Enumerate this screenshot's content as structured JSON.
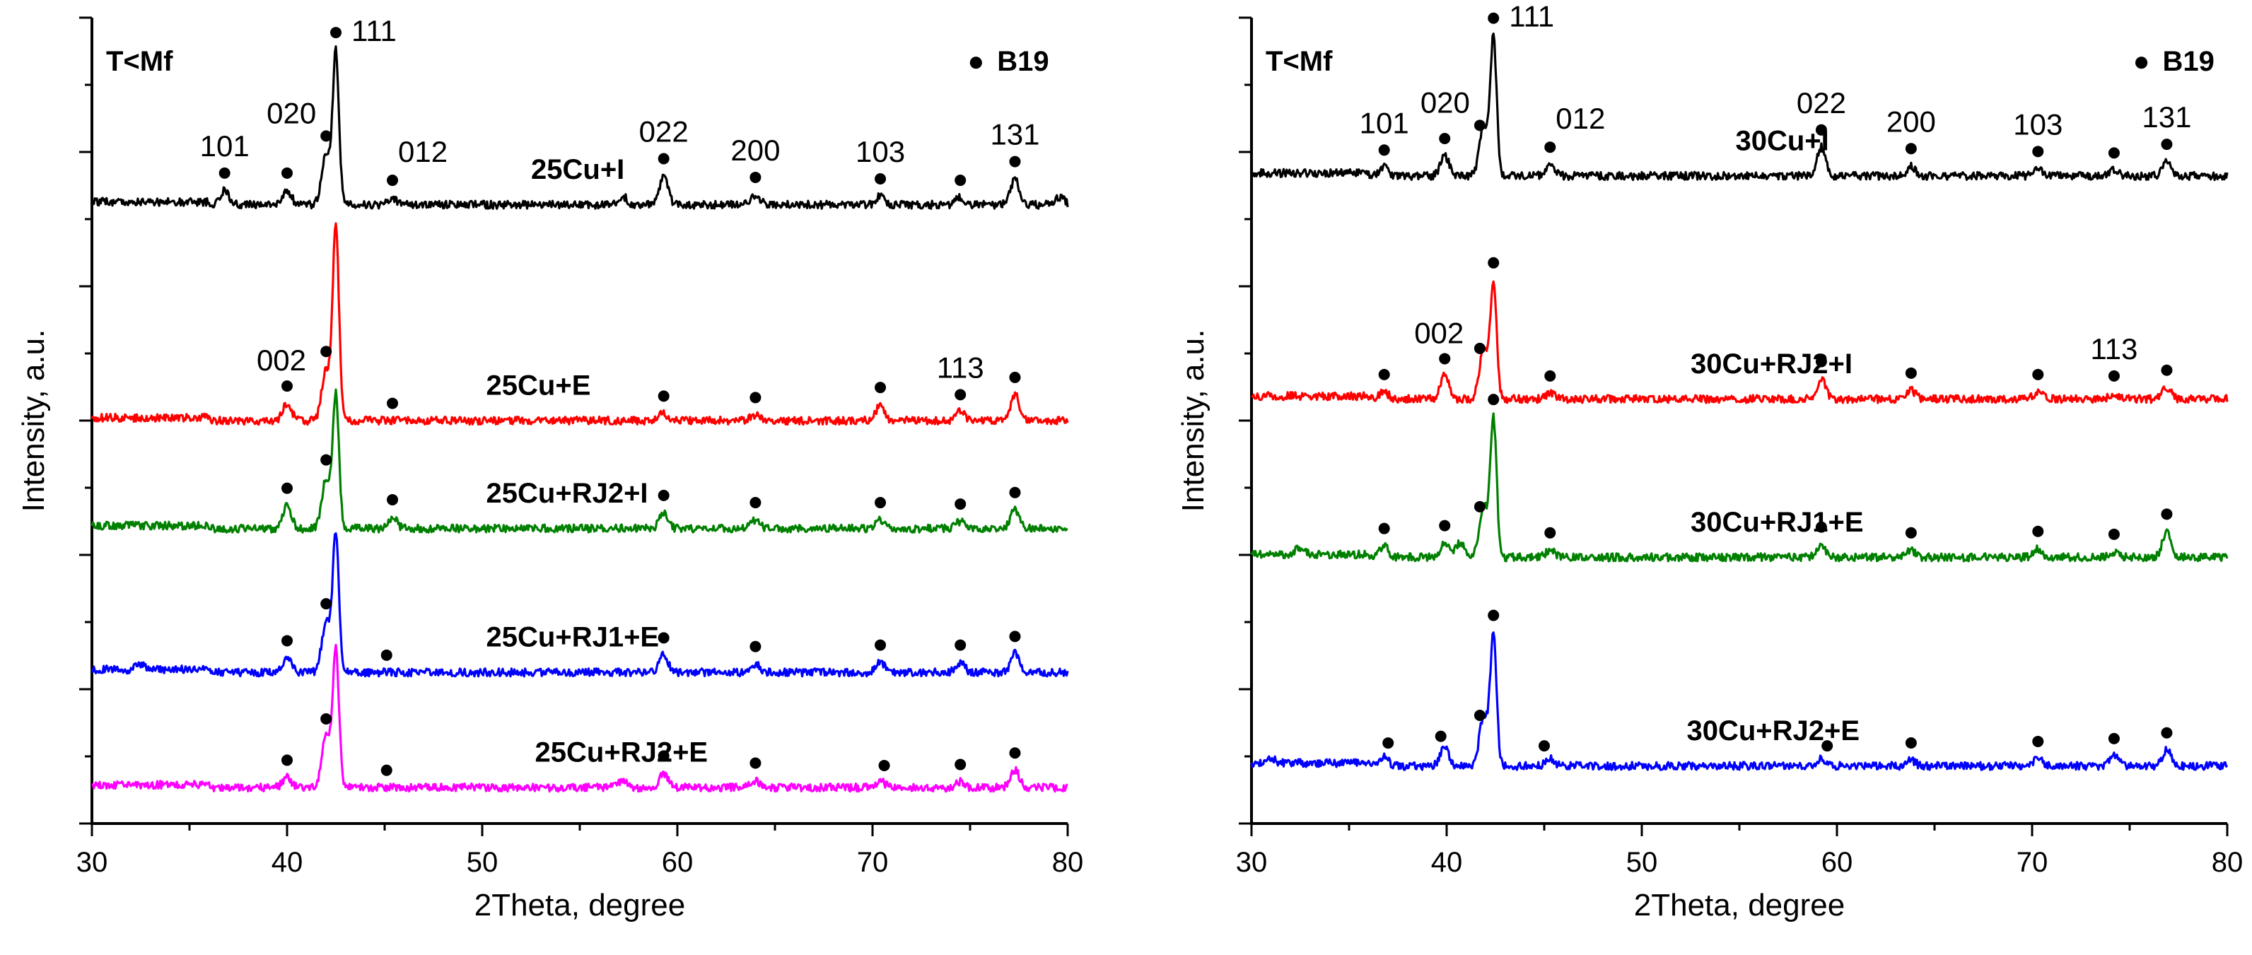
{
  "chart_data": [
    {
      "type": "line",
      "xlabel": "2Theta, degree",
      "ylabel": "Intensity, a.u.",
      "xlim": [
        30,
        80
      ],
      "xticks": [
        30,
        40,
        50,
        60,
        70,
        80
      ],
      "y_tick_labels": "none",
      "grid": false,
      "condition_label": "T<Mf",
      "legend": {
        "marker": "●",
        "label": "B19",
        "placement": "top-right"
      },
      "reflections": [
        {
          "hkl": "101",
          "x": 36.8
        },
        {
          "hkl": "002",
          "x": 40.0
        },
        {
          "hkl": "020",
          "x": 42.0
        },
        {
          "hkl": "111",
          "x": 42.5
        },
        {
          "hkl": "012",
          "x": 45.4
        },
        {
          "hkl": "022",
          "x": 59.3
        },
        {
          "hkl": "200",
          "x": 64.0
        },
        {
          "hkl": "103",
          "x": 70.4
        },
        {
          "hkl": "113",
          "x": 74.5
        },
        {
          "hkl": "131",
          "x": 77.3
        }
      ],
      "shown_hkl_labels": [
        "101",
        "020",
        "111",
        "012",
        "022",
        "200",
        "103",
        "131",
        "002",
        "113"
      ],
      "series": [
        {
          "name": "25Cu+I",
          "color": "#000000",
          "baseline": 4.3,
          "peaks": [
            [
              36.8,
              0.1
            ],
            [
              40.0,
              0.1
            ],
            [
              42.0,
              0.35
            ],
            [
              42.5,
              1.05
            ],
            [
              45.4,
              0.05
            ],
            [
              57.2,
              0.06
            ],
            [
              59.3,
              0.2
            ],
            [
              64.0,
              0.07
            ],
            [
              70.4,
              0.06
            ],
            [
              74.5,
              0.05
            ],
            [
              77.3,
              0.18
            ],
            [
              79.6,
              0.05
            ]
          ],
          "dots": [
            36.8,
            40.0,
            42.0,
            42.5,
            45.4,
            59.3,
            64.0,
            70.4,
            74.5,
            77.3
          ],
          "dot_labels": {
            "101": 36.8,
            "020": 42.0,
            "111": 42.5,
            "012": 45.4,
            "022": 59.3,
            "200": 64.0,
            "103": 70.4,
            "131": 77.3
          },
          "label_x": 52.5
        },
        {
          "name": "25Cu+E",
          "color": "#ff0000",
          "baseline": 2.8,
          "peaks": [
            [
              40.0,
              0.12
            ],
            [
              42.0,
              0.35
            ],
            [
              42.5,
              1.35
            ],
            [
              59.3,
              0.05
            ],
            [
              64.0,
              0.04
            ],
            [
              70.4,
              0.11
            ],
            [
              74.5,
              0.06
            ],
            [
              77.3,
              0.18
            ]
          ],
          "dots": [
            40.0,
            42.0,
            45.4,
            59.3,
            64.0,
            70.4,
            74.5,
            77.3
          ],
          "dot_labels": {
            "002": 40.0,
            "113": 74.5
          },
          "label_x": 50.2
        },
        {
          "name": "25Cu+RJ2+I",
          "color": "#008000",
          "baseline": 2.05,
          "peaks": [
            [
              40.0,
              0.16
            ],
            [
              42.0,
              0.35
            ],
            [
              42.5,
              0.92
            ],
            [
              45.4,
              0.08
            ],
            [
              59.3,
              0.11
            ],
            [
              64.0,
              0.06
            ],
            [
              70.4,
              0.06
            ],
            [
              74.5,
              0.05
            ],
            [
              77.3,
              0.13
            ]
          ],
          "dots": [
            40.0,
            42.0,
            45.4,
            59.3,
            64.0,
            70.4,
            74.5,
            77.3
          ],
          "label_x": 50.2
        },
        {
          "name": "25Cu+RJ1+E",
          "color": "#0000ff",
          "baseline": 1.05,
          "peaks": [
            [
              32.5,
              0.04
            ],
            [
              40.0,
              0.1
            ],
            [
              42.0,
              0.35
            ],
            [
              42.5,
              0.95
            ],
            [
              59.3,
              0.12
            ],
            [
              64.0,
              0.06
            ],
            [
              70.4,
              0.07
            ],
            [
              74.5,
              0.07
            ],
            [
              77.3,
              0.13
            ]
          ],
          "dots": [
            40.0,
            42.0,
            45.1,
            59.3,
            64.0,
            70.4,
            74.5,
            77.3
          ],
          "label_x": 50.2
        },
        {
          "name": "25Cu+RJ2+E",
          "color": "#ff00ff",
          "baseline": 0.25,
          "peaks": [
            [
              40.0,
              0.07
            ],
            [
              42.0,
              0.35
            ],
            [
              42.5,
              0.95
            ],
            [
              57.2,
              0.05
            ],
            [
              59.3,
              0.1
            ],
            [
              64.0,
              0.05
            ],
            [
              70.4,
              0.05
            ],
            [
              74.5,
              0.04
            ],
            [
              77.3,
              0.12
            ]
          ],
          "dots": [
            40.0,
            42.0,
            45.1,
            59.3,
            64.0,
            70.6,
            74.5,
            77.3
          ],
          "label_x": 52.7
        }
      ],
      "series_label_x_extra": {
        "25Cu+RJ2+I": 52.3,
        "25Cu+RJ1+E": 52.0,
        "25Cu+RJ2+E": 52.7
      }
    },
    {
      "type": "line",
      "xlabel": "2Theta, degree",
      "ylabel": "Intensity, a.u.",
      "xlim": [
        30,
        80
      ],
      "xticks": [
        30,
        40,
        50,
        60,
        70,
        80
      ],
      "y_tick_labels": "none",
      "grid": false,
      "condition_label": "T<Mf",
      "legend": {
        "marker": "●",
        "label": "B19",
        "placement": "top-right"
      },
      "series": [
        {
          "name": "30Cu+I",
          "color": "#000000",
          "baseline": 4.5,
          "peaks": [
            [
              36.8,
              0.06
            ],
            [
              39.9,
              0.14
            ],
            [
              41.9,
              0.35
            ],
            [
              42.4,
              0.95
            ],
            [
              45.3,
              0.08
            ],
            [
              59.2,
              0.2
            ],
            [
              63.8,
              0.07
            ],
            [
              70.3,
              0.05
            ],
            [
              74.2,
              0.04
            ],
            [
              76.9,
              0.1
            ]
          ],
          "dots": [
            36.8,
            39.9,
            41.7,
            42.4,
            45.3,
            59.2,
            63.8,
            70.3,
            74.2,
            76.9
          ],
          "dot_labels": {
            "101": 36.8,
            "020": 41.7,
            "111": 42.4,
            "012": 45.3,
            "022": 59.2,
            "200": 63.8,
            "103": 70.3,
            "131": 76.9
          },
          "label_x": 54.8
        },
        {
          "name": "30Cu+RJ2+I",
          "color": "#ff0000",
          "baseline": 2.95,
          "peaks": [
            [
              36.8,
              0.05
            ],
            [
              39.9,
              0.16
            ],
            [
              41.9,
              0.35
            ],
            [
              42.4,
              0.8
            ],
            [
              45.3,
              0.04
            ],
            [
              59.2,
              0.14
            ],
            [
              63.8,
              0.06
            ],
            [
              70.3,
              0.05
            ],
            [
              74.2,
              0.04
            ],
            [
              76.9,
              0.08
            ]
          ],
          "dots": [
            36.8,
            39.9,
            41.7,
            42.4,
            45.3,
            59.2,
            63.8,
            70.3,
            74.2,
            76.9
          ],
          "dot_labels": {
            "002": 39.9,
            "113": 74.2
          },
          "label_x": 52.5
        },
        {
          "name": "30Cu+RJ1+E",
          "color": "#008000",
          "baseline": 1.85,
          "peaks": [
            [
              32.5,
              0.05
            ],
            [
              36.8,
              0.08
            ],
            [
              39.9,
              0.1
            ],
            [
              40.7,
              0.1
            ],
            [
              41.9,
              0.35
            ],
            [
              42.4,
              0.95
            ],
            [
              45.3,
              0.05
            ],
            [
              59.2,
              0.09
            ],
            [
              63.8,
              0.05
            ],
            [
              70.3,
              0.06
            ],
            [
              74.2,
              0.04
            ],
            [
              76.9,
              0.18
            ]
          ],
          "dots": [
            36.8,
            39.9,
            41.7,
            42.4,
            45.3,
            59.2,
            63.8,
            70.3,
            74.2,
            76.9
          ],
          "label_x": 52.5
        },
        {
          "name": "30Cu+RJ2+E",
          "color": "#0000ff",
          "baseline": 0.4,
          "peaks": [
            [
              31.0,
              0.03
            ],
            [
              36.8,
              0.06
            ],
            [
              39.9,
              0.13
            ],
            [
              41.9,
              0.35
            ],
            [
              42.4,
              0.9
            ],
            [
              45.3,
              0.05
            ],
            [
              59.2,
              0.05
            ],
            [
              63.8,
              0.04
            ],
            [
              70.3,
              0.05
            ],
            [
              74.2,
              0.07
            ],
            [
              76.9,
              0.11
            ]
          ],
          "dots": [
            37.0,
            39.7,
            41.7,
            42.4,
            45.0,
            59.5,
            63.8,
            70.3,
            74.2,
            76.9
          ],
          "label_x": 52.3
        }
      ]
    }
  ]
}
